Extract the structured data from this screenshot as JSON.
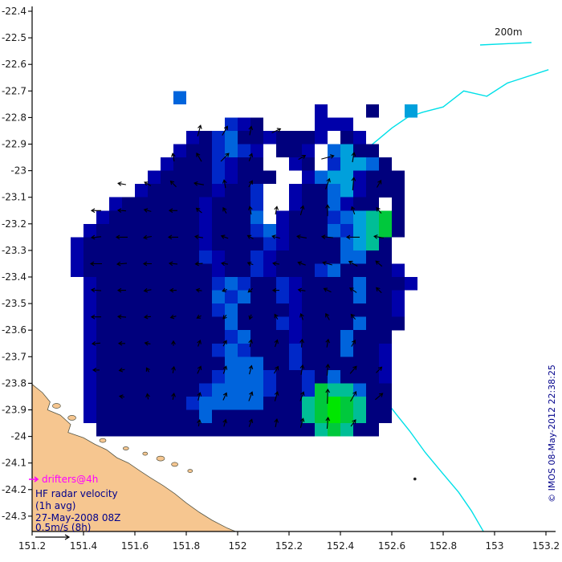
{
  "copyright": "© IMOS 08-May-2012 22:38:25",
  "legend": {
    "drifters": "drifters@4h",
    "line1": "HF radar velocity",
    "line2": "(1h avg)",
    "line3": "27-May-2008 08Z",
    "line4": "0.5m/s (8h)",
    "depth_label": "200m"
  },
  "colors": {
    "background": "#FFFFFF",
    "axis": "#000000",
    "tick_label": "#1a1a1a",
    "land_fill": "#F6C690",
    "land_stroke": "#555544",
    "contour": "#00E0E8",
    "arrow": "#000000",
    "legend_text": "#00008B",
    "drifters": "#FF00FF",
    "copyright": "#00008B"
  },
  "palette": {
    "n": "#00007D",
    "d": "#0000AA",
    "b": "#0028C8",
    "l": "#0064DC",
    "c": "#00A0DC",
    "t": "#00BE96",
    "g": "#00C83C",
    "G": "#00E600"
  },
  "axes": {
    "x": {
      "min": 151.2,
      "max": 153.2,
      "ticks": [
        151.2,
        151.4,
        151.6,
        151.8,
        152.0,
        152.2,
        152.4,
        152.6,
        152.8,
        153.0,
        153.2
      ],
      "labels": [
        "151.2",
        "151.4",
        "151.6",
        "151.8",
        "152",
        "152.2",
        "152.4",
        "152.6",
        "152.8",
        "153",
        "153.2"
      ]
    },
    "y": {
      "min": -24.3,
      "max": -22.4,
      "ticks": [
        -22.4,
        -22.5,
        -22.6,
        -22.7,
        -22.8,
        -22.9,
        -23.0,
        -23.1,
        -23.2,
        -23.3,
        -23.4,
        -23.5,
        -23.6,
        -23.7,
        -23.8,
        -23.9,
        -24.0,
        -24.1,
        -24.2,
        -24.3
      ],
      "labels": [
        "-22.4",
        "-22.5",
        "-22.6",
        "-22.7",
        "-22.8",
        "-22.9",
        "-23",
        "-23.1",
        "-23.2",
        "-23.3",
        "-23.4",
        "-23.5",
        "-23.6",
        "-23.7",
        "-23.8",
        "-23.9",
        "-24",
        "-24.1",
        "-24.2",
        "-24.3"
      ]
    }
  },
  "chart_data": {
    "type": "heatmap",
    "overlays": [
      "vector_field",
      "coastline",
      "200m_isobath"
    ],
    "cell_size_deg": 0.05,
    "grid": {
      "lon0": 151.35,
      "lat0": -22.8,
      "dlon": 0.05,
      "dlat": 0.05,
      "rows": [
        "............bdn....ddd.....",
        ".........dnblnndnnnd.nd....",
        "........dnnblbd.nnd.lcnn...",
        ".......dnnnbdnn..dn.bccln..",
        "......dnnnnbdnnn..dlccdnnn.",
        ".....dnnnnndnnb..dnnlcdnnn.",
        "...dnnnnnndnnnb..dnnldnn.n.",
        "..dnnnnnnndnnnl.dnnnblctgn.",
        ".dnnnnnnnndnnnbldnnnlbctgn.",
        "dnnnnnnnnndnnnnbdnnnnlctn..",
        "dnnnnnnnnnbdnnbdnnnnnllnn..",
        "dnnnnnnnnnndnnbdnnnblnnnnd.",
        ".dnnnnnnnnnblbnnbdnnnnlnnnd",
        ".dnnnnnnnnnlblnnbdnnnnlnnd.",
        ".dnnnnnnnnnblnnnndnnnnnnnd.",
        ".dnnnnnnnnnnlnnnbdnnnnlnnn.",
        ".dnnnnnnnnnnblnnndnnnlnnn..",
        ".dnnnnnnnnnblbnnnbnnnlnnd..",
        ".dnnnnnnnnnnlllnnbnnnnnnd..",
        ".dnnnnnnnnnblllbnnbnlnnnd..",
        ".dnnnnnnnnbllllbnnbgttlnn..",
        ".dnnnnnnnblllllnnntgGgtnn..",
        ".dnnnnnnnnlnnnnnnntgGgtnn..",
        "..nnnnnnnnnnnnnnnnntgtnn..."
      ]
    },
    "extra_cells": [
      {
        "lon": 151.75,
        "lat": -22.7,
        "c": "l"
      },
      {
        "lon": 152.3,
        "lat": -22.75,
        "c": "d"
      },
      {
        "lon": 152.5,
        "lat": -22.75,
        "c": "n"
      },
      {
        "lon": 152.65,
        "lat": -22.75,
        "c": "c"
      }
    ],
    "arrow_format": "[lon, lat, direction_deg_ccw_from_east, length_px]",
    "arrows": [
      [
        151.85,
        -22.85,
        75,
        14
      ],
      [
        151.95,
        -22.85,
        60,
        13
      ],
      [
        152.05,
        -22.85,
        80,
        11
      ],
      [
        152.15,
        -22.85,
        25,
        12
      ],
      [
        151.75,
        -22.95,
        100,
        10
      ],
      [
        151.85,
        -22.95,
        120,
        12
      ],
      [
        151.95,
        -22.95,
        45,
        14
      ],
      [
        152.05,
        -22.95,
        70,
        10
      ],
      [
        152.25,
        -22.95,
        30,
        10
      ],
      [
        152.35,
        -22.95,
        15,
        16
      ],
      [
        152.45,
        -22.95,
        80,
        12
      ],
      [
        151.55,
        -23.05,
        170,
        10
      ],
      [
        151.65,
        -23.05,
        150,
        9
      ],
      [
        151.75,
        -23.05,
        135,
        10
      ],
      [
        151.85,
        -23.05,
        170,
        12
      ],
      [
        151.95,
        -23.05,
        100,
        10
      ],
      [
        152.05,
        -23.05,
        60,
        9
      ],
      [
        152.35,
        -23.05,
        70,
        14
      ],
      [
        152.45,
        -23.05,
        85,
        16
      ],
      [
        152.55,
        -23.05,
        60,
        10
      ],
      [
        151.45,
        -23.15,
        180,
        12
      ],
      [
        151.55,
        -23.15,
        175,
        10
      ],
      [
        151.65,
        -23.15,
        165,
        9
      ],
      [
        151.75,
        -23.15,
        180,
        10
      ],
      [
        151.85,
        -23.15,
        140,
        9
      ],
      [
        151.95,
        -23.15,
        120,
        8
      ],
      [
        152.05,
        -23.15,
        100,
        10
      ],
      [
        152.15,
        -23.15,
        80,
        10
      ],
      [
        152.25,
        -23.15,
        75,
        12
      ],
      [
        152.35,
        -23.15,
        90,
        14
      ],
      [
        152.45,
        -23.15,
        110,
        10
      ],
      [
        152.55,
        -23.15,
        130,
        9
      ],
      [
        151.45,
        -23.25,
        185,
        12
      ],
      [
        151.55,
        -23.25,
        180,
        14
      ],
      [
        151.65,
        -23.25,
        190,
        10
      ],
      [
        151.75,
        -23.25,
        180,
        12
      ],
      [
        151.85,
        -23.25,
        170,
        10
      ],
      [
        151.95,
        -23.25,
        160,
        9
      ],
      [
        152.05,
        -23.25,
        150,
        8
      ],
      [
        152.15,
        -23.25,
        165,
        10
      ],
      [
        152.25,
        -23.25,
        170,
        12
      ],
      [
        152.35,
        -23.25,
        175,
        14
      ],
      [
        152.45,
        -23.25,
        180,
        16
      ],
      [
        152.55,
        -23.25,
        170,
        12
      ],
      [
        151.45,
        -23.35,
        180,
        14
      ],
      [
        151.55,
        -23.35,
        185,
        12
      ],
      [
        151.65,
        -23.35,
        180,
        10
      ],
      [
        151.75,
        -23.35,
        175,
        10
      ],
      [
        151.85,
        -23.35,
        185,
        9
      ],
      [
        151.95,
        -23.35,
        170,
        8
      ],
      [
        152.05,
        -23.35,
        160,
        7
      ],
      [
        152.15,
        -23.35,
        170,
        8
      ],
      [
        152.25,
        -23.35,
        160,
        10
      ],
      [
        152.35,
        -23.35,
        165,
        12
      ],
      [
        152.45,
        -23.35,
        150,
        12
      ],
      [
        152.55,
        -23.35,
        140,
        10
      ],
      [
        151.45,
        -23.45,
        175,
        12
      ],
      [
        151.55,
        -23.45,
        180,
        10
      ],
      [
        151.65,
        -23.45,
        190,
        9
      ],
      [
        151.75,
        -23.45,
        180,
        8
      ],
      [
        151.85,
        -23.45,
        170,
        7
      ],
      [
        151.95,
        -23.45,
        200,
        6
      ],
      [
        152.05,
        -23.45,
        220,
        7
      ],
      [
        152.15,
        -23.45,
        180,
        8
      ],
      [
        152.25,
        -23.45,
        170,
        9
      ],
      [
        152.35,
        -23.45,
        155,
        10
      ],
      [
        152.45,
        -23.45,
        145,
        10
      ],
      [
        152.55,
        -23.45,
        135,
        9
      ],
      [
        151.45,
        -23.55,
        180,
        12
      ],
      [
        151.55,
        -23.55,
        175,
        10
      ],
      [
        151.65,
        -23.55,
        185,
        8
      ],
      [
        151.75,
        -23.55,
        195,
        7
      ],
      [
        151.85,
        -23.55,
        210,
        6
      ],
      [
        151.95,
        -23.55,
        230,
        6
      ],
      [
        152.05,
        -23.55,
        250,
        6
      ],
      [
        152.15,
        -23.55,
        120,
        7
      ],
      [
        152.25,
        -23.55,
        110,
        8
      ],
      [
        152.35,
        -23.55,
        120,
        9
      ],
      [
        152.45,
        -23.55,
        130,
        8
      ],
      [
        151.45,
        -23.65,
        185,
        10
      ],
      [
        151.55,
        -23.65,
        180,
        8
      ],
      [
        151.65,
        -23.65,
        170,
        7
      ],
      [
        151.75,
        -23.65,
        90,
        6
      ],
      [
        151.85,
        -23.65,
        70,
        8
      ],
      [
        151.95,
        -23.65,
        60,
        8
      ],
      [
        152.05,
        -23.65,
        80,
        9
      ],
      [
        152.15,
        -23.65,
        70,
        9
      ],
      [
        152.25,
        -23.65,
        85,
        10
      ],
      [
        152.35,
        -23.65,
        80,
        10
      ],
      [
        152.45,
        -23.65,
        60,
        9
      ],
      [
        151.45,
        -23.75,
        180,
        8
      ],
      [
        151.55,
        -23.75,
        190,
        7
      ],
      [
        151.65,
        -23.75,
        120,
        6
      ],
      [
        151.75,
        -23.75,
        80,
        8
      ],
      [
        151.85,
        -23.75,
        65,
        10
      ],
      [
        151.95,
        -23.75,
        70,
        10
      ],
      [
        152.05,
        -23.75,
        75,
        11
      ],
      [
        152.15,
        -23.75,
        60,
        10
      ],
      [
        152.25,
        -23.75,
        80,
        12
      ],
      [
        152.35,
        -23.75,
        85,
        14
      ],
      [
        152.45,
        -23.75,
        50,
        12
      ],
      [
        152.55,
        -23.75,
        45,
        10
      ],
      [
        151.55,
        -23.85,
        170,
        6
      ],
      [
        151.65,
        -23.85,
        100,
        7
      ],
      [
        151.75,
        -23.85,
        80,
        8
      ],
      [
        151.85,
        -23.85,
        75,
        10
      ],
      [
        151.95,
        -23.85,
        65,
        10
      ],
      [
        152.05,
        -23.85,
        70,
        12
      ],
      [
        152.15,
        -23.85,
        75,
        12
      ],
      [
        152.25,
        -23.85,
        70,
        12
      ],
      [
        152.35,
        -23.85,
        88,
        18
      ],
      [
        152.45,
        -23.85,
        60,
        14
      ],
      [
        152.55,
        -23.85,
        40,
        12
      ],
      [
        151.85,
        -23.95,
        80,
        8
      ],
      [
        151.95,
        -23.95,
        75,
        9
      ],
      [
        152.05,
        -23.95,
        70,
        10
      ],
      [
        152.15,
        -23.95,
        80,
        10
      ],
      [
        152.25,
        -23.95,
        75,
        12
      ],
      [
        152.35,
        -23.95,
        85,
        14
      ],
      [
        152.45,
        -23.95,
        55,
        10
      ]
    ],
    "contour_200m": [
      [
        153.21,
        -22.62
      ],
      [
        153.05,
        -22.67
      ],
      [
        152.97,
        -22.72
      ],
      [
        152.88,
        -22.7
      ],
      [
        152.8,
        -22.76
      ],
      [
        152.72,
        -22.78
      ],
      [
        152.66,
        -22.8
      ],
      [
        152.6,
        -22.84
      ],
      [
        152.55,
        -22.88
      ],
      [
        152.5,
        -22.92
      ],
      [
        152.46,
        -22.96
      ],
      [
        152.43,
        -23.0
      ],
      [
        152.39,
        -23.03
      ],
      [
        152.36,
        -23.08
      ],
      [
        152.32,
        -23.14
      ],
      [
        152.3,
        -23.2
      ],
      [
        152.28,
        -23.27
      ],
      [
        152.28,
        -23.33
      ],
      [
        152.3,
        -23.4
      ],
      [
        152.32,
        -23.47
      ],
      [
        152.35,
        -23.53
      ],
      [
        152.38,
        -23.59
      ],
      [
        152.42,
        -23.65
      ],
      [
        152.46,
        -23.71
      ],
      [
        152.5,
        -23.77
      ],
      [
        152.54,
        -23.82
      ],
      [
        152.58,
        -23.87
      ],
      [
        152.62,
        -23.92
      ],
      [
        152.67,
        -23.98
      ],
      [
        152.73,
        -24.06
      ],
      [
        152.79,
        -24.13
      ],
      [
        152.86,
        -24.21
      ],
      [
        152.91,
        -24.28
      ],
      [
        152.94,
        -24.33
      ],
      [
        152.97,
        -24.38
      ]
    ],
    "coastline": [
      [
        151.195,
        -23.8
      ],
      [
        151.24,
        -23.835
      ],
      [
        151.27,
        -23.87
      ],
      [
        151.26,
        -23.9
      ],
      [
        151.31,
        -23.92
      ],
      [
        151.35,
        -23.955
      ],
      [
        151.34,
        -23.985
      ],
      [
        151.4,
        -24.005
      ],
      [
        151.445,
        -24.03
      ],
      [
        151.49,
        -24.05
      ],
      [
        151.53,
        -24.08
      ],
      [
        151.575,
        -24.1
      ],
      [
        151.62,
        -24.13
      ],
      [
        151.66,
        -24.155
      ],
      [
        151.71,
        -24.185
      ],
      [
        151.755,
        -24.215
      ],
      [
        151.8,
        -24.25
      ],
      [
        151.85,
        -24.285
      ],
      [
        151.9,
        -24.315
      ],
      [
        151.96,
        -24.345
      ],
      [
        152.01,
        -24.365
      ],
      [
        152.02,
        -24.43
      ],
      [
        151.12,
        -24.43
      ],
      [
        151.12,
        -23.79
      ]
    ],
    "islands": [
      [
        151.295,
        -23.885,
        5,
        3
      ],
      [
        151.355,
        -23.93,
        5,
        3
      ],
      [
        151.475,
        -24.015,
        4,
        2.5
      ],
      [
        151.565,
        -24.045,
        3.5,
        2
      ],
      [
        151.64,
        -24.065,
        3,
        2
      ],
      [
        151.7,
        -24.083,
        5,
        3
      ],
      [
        151.755,
        -24.105,
        4,
        2.5
      ],
      [
        151.815,
        -24.13,
        3,
        2
      ]
    ],
    "rocks": [
      [
        152.69,
        -24.16
      ]
    ]
  }
}
